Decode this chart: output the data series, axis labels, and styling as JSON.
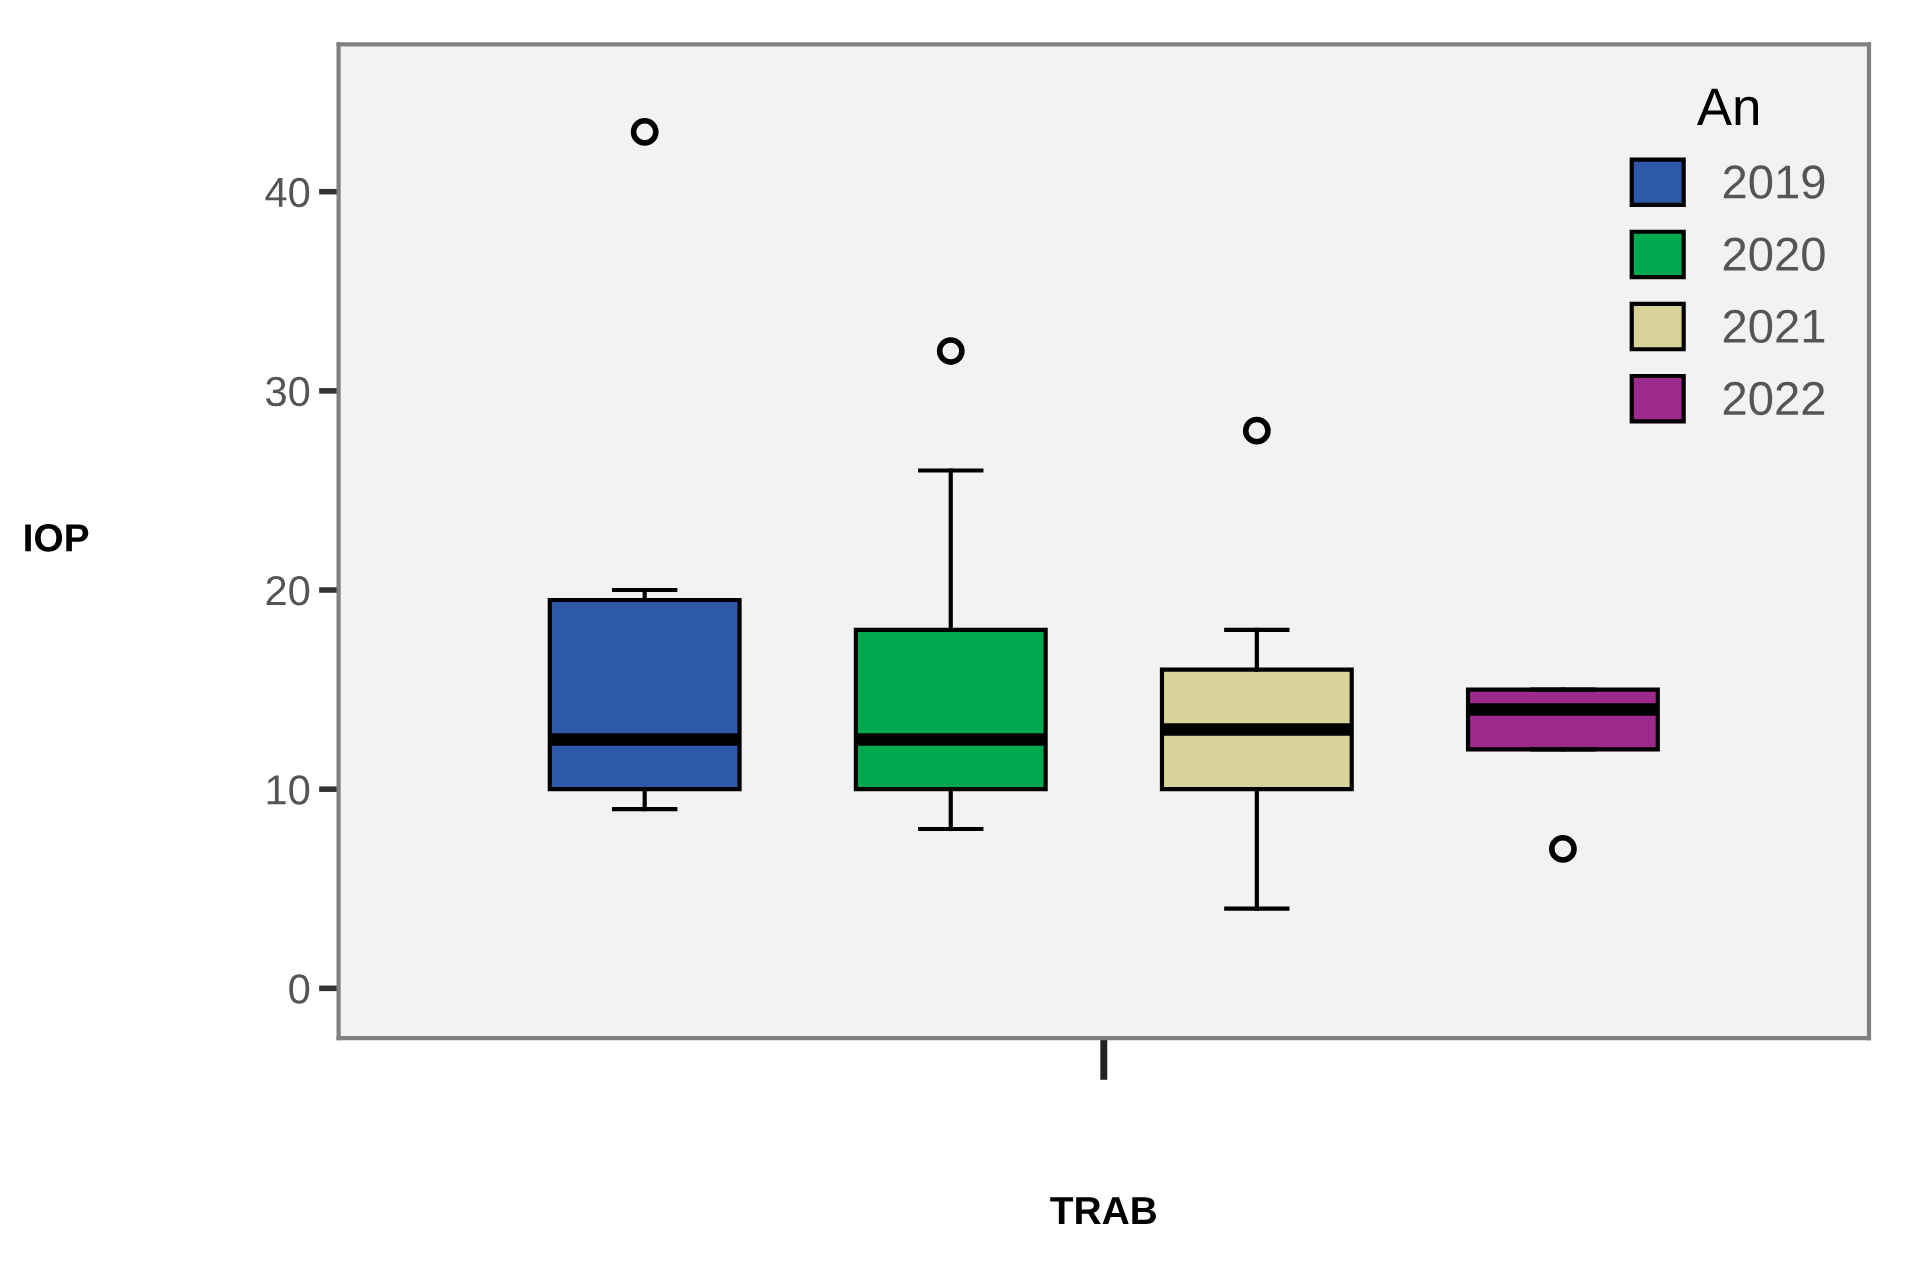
{
  "chart_data": {
    "type": "box",
    "xlabel": "TRAB",
    "ylabel": "IOP",
    "legend_title": "An",
    "categories": [
      null
    ],
    "series": [
      {
        "name": "2019",
        "color": "#2e58a8",
        "boxes": [
          {
            "low": 9,
            "q1": 10,
            "median": 12.5,
            "q3": 19.5,
            "high": 20,
            "outliers": [
              43
            ]
          }
        ]
      },
      {
        "name": "2020",
        "color": "#00a84f",
        "boxes": [
          {
            "low": 8,
            "q1": 10,
            "median": 12.5,
            "q3": 18,
            "high": 26,
            "outliers": [
              32
            ]
          }
        ]
      },
      {
        "name": "2021",
        "color": "#d9d39a",
        "boxes": [
          {
            "low": 4,
            "q1": 10,
            "median": 13,
            "q3": 16,
            "high": 18,
            "outliers": [
              28
            ]
          }
        ]
      },
      {
        "name": "2022",
        "color": "#9b2a8c",
        "boxes": [
          {
            "low": 12,
            "q1": 12,
            "median": 14,
            "q3": 15,
            "high": 15,
            "outliers": [
              7
            ]
          }
        ]
      }
    ],
    "ylim": [
      -2.5,
      47.4
    ],
    "yticks": [
      0,
      10,
      20,
      30,
      40
    ],
    "legend": "top right",
    "grid": false
  }
}
